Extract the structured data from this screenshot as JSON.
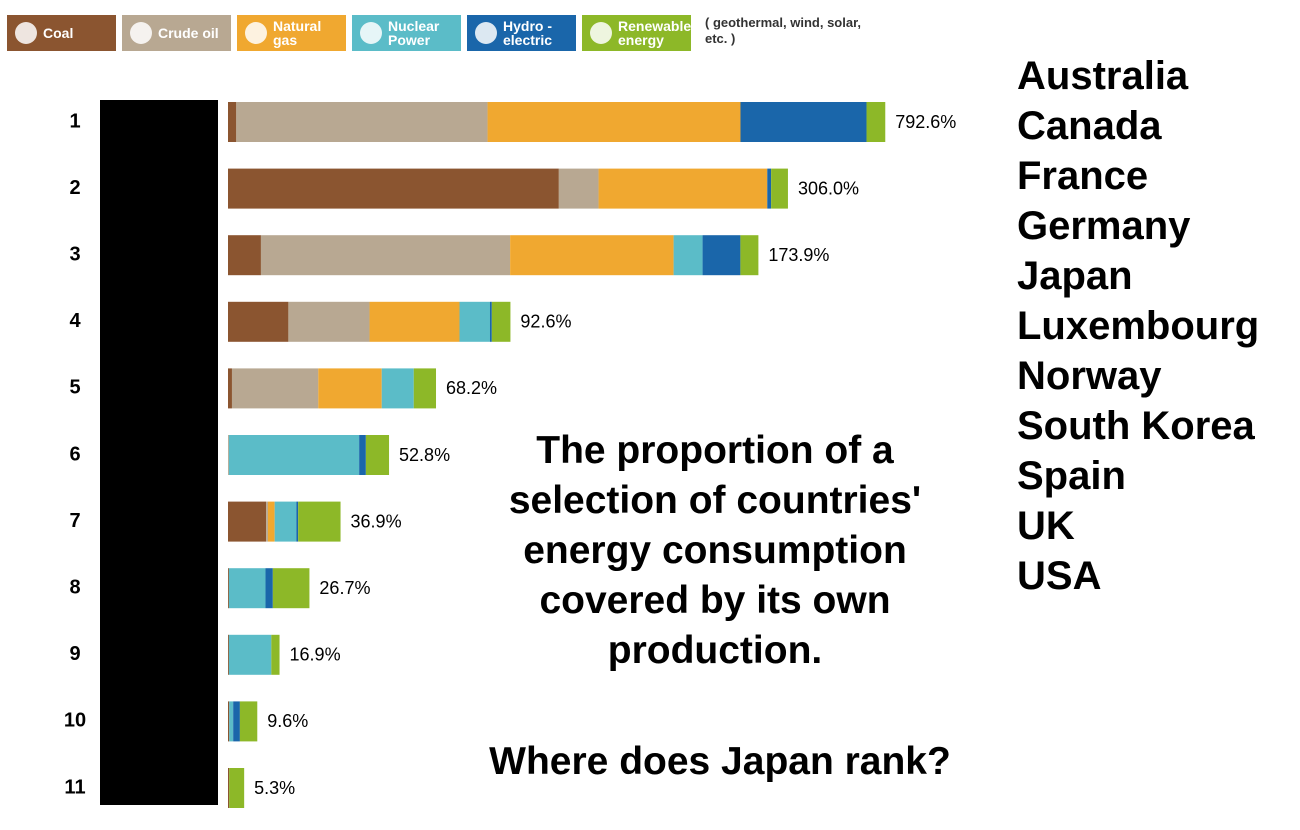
{
  "chart_data": {
    "type": "bar",
    "orientation": "horizontal",
    "stacked": true,
    "categories": [
      "1",
      "2",
      "3",
      "4",
      "5",
      "6",
      "7",
      "8",
      "9",
      "10",
      "11"
    ],
    "series": [
      {
        "name": "Coal",
        "color": "#8b5530",
        "values": [
          10,
          180.8,
          10.8,
          19.8,
          1.3,
          0,
          12.5,
          0.3,
          0.3,
          0.4,
          0.4
        ]
      },
      {
        "name": "Crude oil",
        "color": "#b8a892",
        "values": [
          303,
          21.7,
          81.7,
          26.6,
          28.3,
          0.3,
          0.6,
          0,
          0,
          0,
          0
        ]
      },
      {
        "name": "Natural gas",
        "color": "#f0a830",
        "values": [
          305,
          92.2,
          53.6,
          29.5,
          20.8,
          0,
          2.2,
          0,
          0,
          0,
          0
        ]
      },
      {
        "name": "Nuclear Power",
        "color": "#5bbcc8",
        "values": [
          0,
          0,
          9.5,
          10.0,
          10.5,
          42.7,
          7.1,
          12.0,
          13.9,
          1.3,
          0
        ]
      },
      {
        "name": "Hydro - electric",
        "color": "#1a66aa",
        "values": [
          152,
          2.1,
          12.4,
          0.6,
          0,
          2.2,
          0.6,
          2.4,
          0,
          2.2,
          0
        ]
      },
      {
        "name": "Renewable energy",
        "color": "#8db828",
        "values": [
          22.6,
          9.2,
          5.9,
          6.1,
          7.3,
          7.6,
          13.9,
          12.0,
          2.7,
          5.7,
          4.9
        ]
      }
    ],
    "totals": [
      792.6,
      306.0,
      173.9,
      92.6,
      68.2,
      52.8,
      36.9,
      26.7,
      16.9,
      9.6,
      5.3
    ],
    "total_labels": [
      "792.6%",
      "306.0%",
      "173.9%",
      "92.6%",
      "68.2%",
      "52.8%",
      "36.9%",
      "26.7%",
      "16.9%",
      "9.6%",
      "5.3%"
    ],
    "legend_note": "( geothermal, wind, solar, etc. )",
    "title": "The proportion of a selection of countries' energy consumption covered by its own production.",
    "question": "Where does Japan rank?",
    "countries": [
      "Australia",
      "Canada",
      "France",
      "Germany",
      "Japan",
      "Luxembourg",
      "Norway",
      "South Korea",
      "Spain",
      "UK",
      "USA"
    ]
  }
}
